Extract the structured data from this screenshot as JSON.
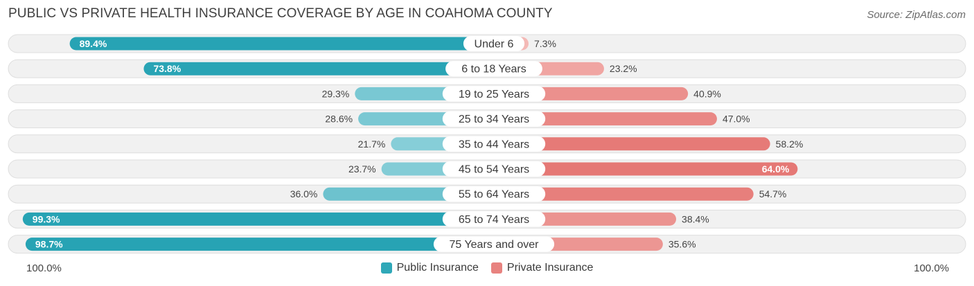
{
  "header": {
    "title": "PUBLIC VS PRIVATE HEALTH INSURANCE COVERAGE BY AGE IN COAHOMA COUNTY",
    "source": "Source: ZipAtlas.com"
  },
  "axis": {
    "left_label": "100.0%",
    "right_label": "100.0%"
  },
  "legend": [
    {
      "label": "Public Insurance",
      "color": "#2fa8b8"
    },
    {
      "label": "Private Insurance",
      "color": "#e8827f"
    }
  ],
  "chart_data": {
    "type": "bar",
    "orientation": "horizontal-diverging",
    "title": "PUBLIC VS PRIVATE HEALTH INSURANCE COVERAGE BY AGE IN COAHOMA COUNTY",
    "xlim": [
      -100,
      100
    ],
    "categories": [
      "Under 6",
      "6 to 18 Years",
      "19 to 25 Years",
      "25 to 34 Years",
      "35 to 44 Years",
      "45 to 54 Years",
      "55 to 64 Years",
      "65 to 74 Years",
      "75 Years and over"
    ],
    "series": [
      {
        "name": "Public Insurance",
        "values": [
          89.4,
          73.8,
          29.3,
          28.6,
          21.7,
          23.7,
          36.0,
          99.3,
          98.7
        ],
        "labels": [
          "89.4%",
          "73.8%",
          "29.3%",
          "28.6%",
          "21.7%",
          "23.7%",
          "36.0%",
          "99.3%",
          "98.7%"
        ]
      },
      {
        "name": "Private Insurance",
        "values": [
          7.3,
          23.2,
          40.9,
          47.0,
          58.2,
          64.0,
          54.7,
          38.4,
          35.6
        ],
        "labels": [
          "7.3%",
          "23.2%",
          "40.9%",
          "47.0%",
          "58.2%",
          "64.0%",
          "54.7%",
          "38.4%",
          "35.6%"
        ]
      }
    ]
  }
}
